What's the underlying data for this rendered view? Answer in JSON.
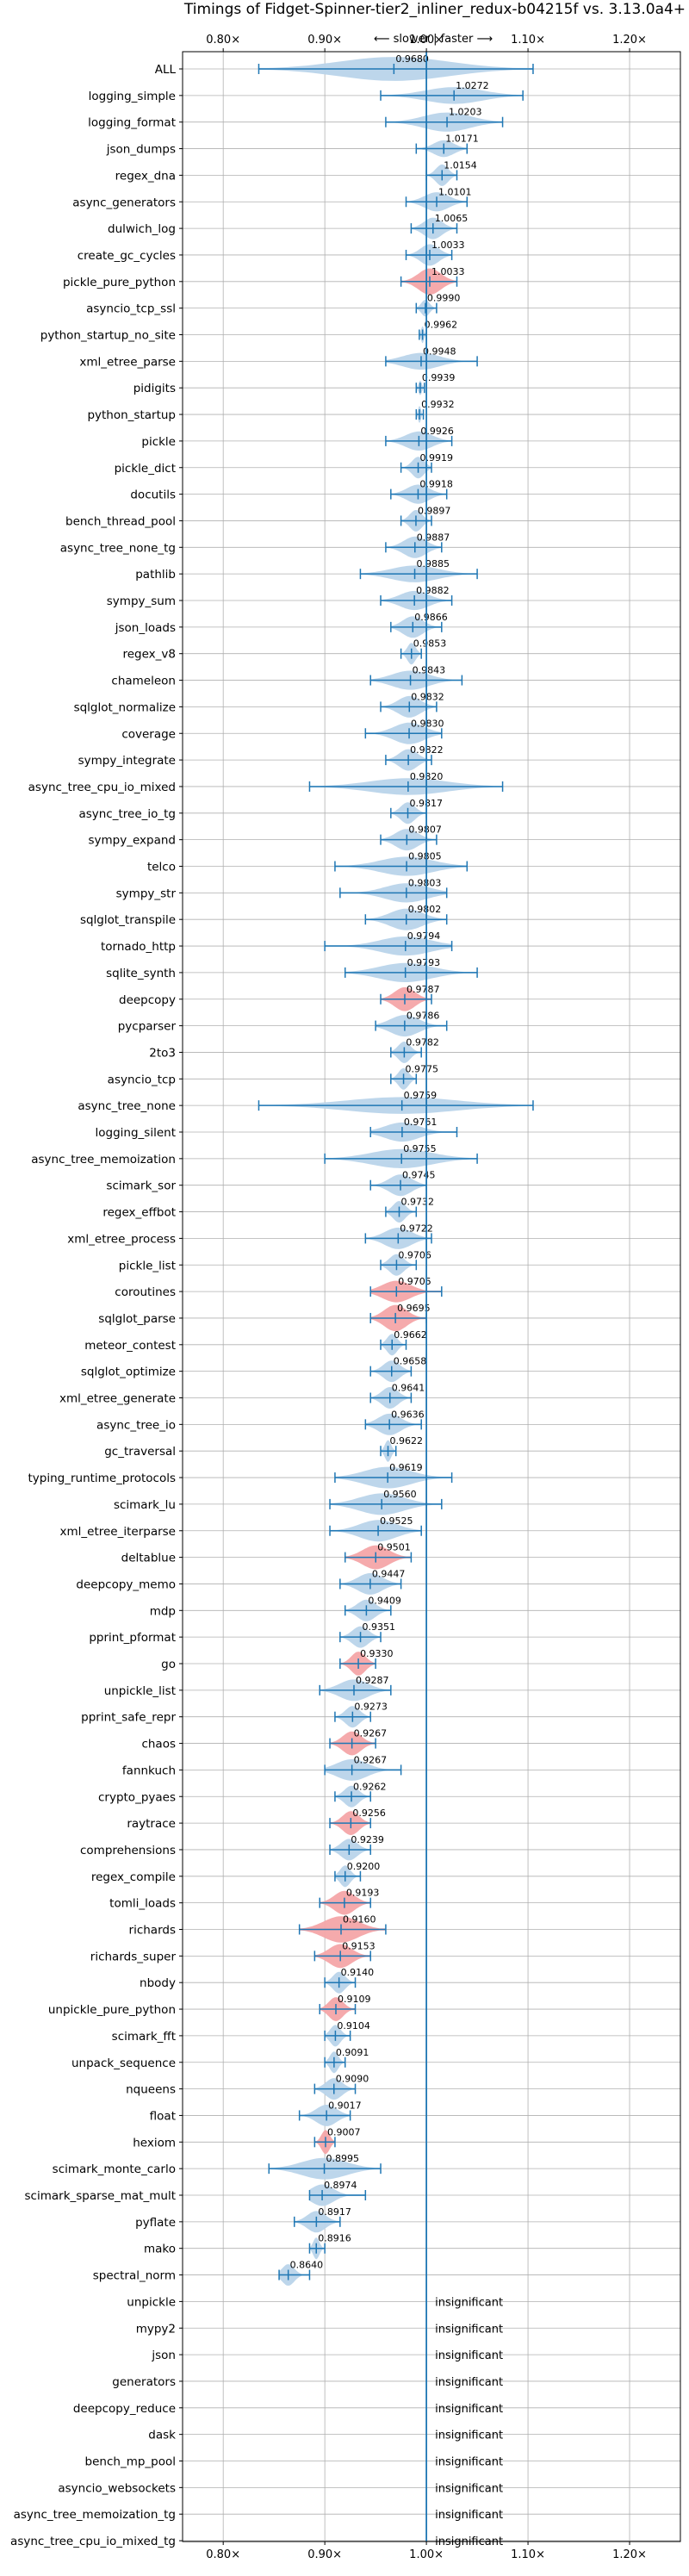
{
  "chart_data": {
    "type": "violin",
    "title": "Timings of Fidget-Spinner-tier2_inliner_redux-b04215f vs. 3.13.0a4+",
    "direction_label": "⟵ slower | faster ⟶",
    "xlim": [
      0.76,
      1.25
    ],
    "x_ticks": [
      {
        "value": 0.8,
        "label": "0.80×"
      },
      {
        "value": 0.9,
        "label": "0.90×"
      },
      {
        "value": 1.0,
        "label": "1.00×"
      },
      {
        "value": 1.1,
        "label": "1.10×"
      },
      {
        "value": 1.2,
        "label": "1.20×"
      }
    ],
    "reference_line": 1.0,
    "colors": {
      "normal": "#1f77b4",
      "normal_fill": "#b9d4ea",
      "highlight_fill": "#f4a5a8",
      "grid": "#b0b0b0"
    },
    "insignificant_text": "insignificant",
    "benchmarks": [
      {
        "name": "ALL",
        "mean": 0.968,
        "min": 0.835,
        "max": 1.105,
        "width": 0.5,
        "hl": false
      },
      {
        "name": "logging_simple",
        "mean": 1.0272,
        "min": 0.955,
        "max": 1.095,
        "width": 0.35,
        "hl": false
      },
      {
        "name": "logging_format",
        "mean": 1.0203,
        "min": 0.96,
        "max": 1.075,
        "width": 0.4,
        "hl": false
      },
      {
        "name": "json_dumps",
        "mean": 1.0171,
        "min": 0.99,
        "max": 1.04,
        "width": 0.35,
        "hl": false
      },
      {
        "name": "regex_dna",
        "mean": 1.0154,
        "min": 1.0,
        "max": 1.03,
        "width": 0.45,
        "hl": false
      },
      {
        "name": "async_generators",
        "mean": 1.0101,
        "min": 0.98,
        "max": 1.04,
        "width": 0.4,
        "hl": false
      },
      {
        "name": "dulwich_log",
        "mean": 1.0065,
        "min": 0.985,
        "max": 1.03,
        "width": 0.45,
        "hl": false
      },
      {
        "name": "create_gc_cycles",
        "mean": 1.0033,
        "min": 0.98,
        "max": 1.025,
        "width": 0.45,
        "hl": false
      },
      {
        "name": "pickle_pure_python",
        "mean": 1.0033,
        "min": 0.975,
        "max": 1.03,
        "width": 0.55,
        "hl": true
      },
      {
        "name": "asyncio_tcp_ssl",
        "mean": 0.999,
        "min": 0.99,
        "max": 1.01,
        "width": 0.35,
        "hl": false
      },
      {
        "name": "python_startup_no_site",
        "mean": 0.9962,
        "min": 0.993,
        "max": 1.0,
        "width": 0.35,
        "hl": false
      },
      {
        "name": "xml_etree_parse",
        "mean": 0.9948,
        "min": 0.96,
        "max": 1.05,
        "width": 0.35,
        "hl": false
      },
      {
        "name": "pidigits",
        "mean": 0.9939,
        "min": 0.99,
        "max": 0.998,
        "width": 0.3,
        "hl": false
      },
      {
        "name": "python_startup",
        "mean": 0.9932,
        "min": 0.99,
        "max": 0.997,
        "width": 0.35,
        "hl": false
      },
      {
        "name": "pickle",
        "mean": 0.9926,
        "min": 0.96,
        "max": 1.025,
        "width": 0.4,
        "hl": false
      },
      {
        "name": "pickle_dict",
        "mean": 0.9919,
        "min": 0.975,
        "max": 1.005,
        "width": 0.45,
        "hl": false
      },
      {
        "name": "docutils",
        "mean": 0.9918,
        "min": 0.965,
        "max": 1.02,
        "width": 0.4,
        "hl": false
      },
      {
        "name": "bench_thread_pool",
        "mean": 0.9897,
        "min": 0.975,
        "max": 1.005,
        "width": 0.45,
        "hl": false
      },
      {
        "name": "async_tree_none_tg",
        "mean": 0.9887,
        "min": 0.96,
        "max": 1.015,
        "width": 0.45,
        "hl": false
      },
      {
        "name": "pathlib",
        "mean": 0.9885,
        "min": 0.935,
        "max": 1.05,
        "width": 0.35,
        "hl": false
      },
      {
        "name": "sympy_sum",
        "mean": 0.9882,
        "min": 0.955,
        "max": 1.025,
        "width": 0.4,
        "hl": false
      },
      {
        "name": "json_loads",
        "mean": 0.9866,
        "min": 0.965,
        "max": 1.015,
        "width": 0.45,
        "hl": false
      },
      {
        "name": "regex_v8",
        "mean": 0.9853,
        "min": 0.975,
        "max": 0.995,
        "width": 0.45,
        "hl": false
      },
      {
        "name": "chameleon",
        "mean": 0.9843,
        "min": 0.945,
        "max": 1.035,
        "width": 0.4,
        "hl": false
      },
      {
        "name": "sqlglot_normalize",
        "mean": 0.9832,
        "min": 0.955,
        "max": 1.01,
        "width": 0.45,
        "hl": false
      },
      {
        "name": "coverage",
        "mean": 0.983,
        "min": 0.94,
        "max": 1.015,
        "width": 0.45,
        "hl": false
      },
      {
        "name": "sympy_integrate",
        "mean": 0.9822,
        "min": 0.96,
        "max": 1.005,
        "width": 0.45,
        "hl": false
      },
      {
        "name": "async_tree_cpu_io_mixed",
        "mean": 0.982,
        "min": 0.885,
        "max": 1.075,
        "width": 0.35,
        "hl": false
      },
      {
        "name": "async_tree_io_tg",
        "mean": 0.9817,
        "min": 0.965,
        "max": 1.0,
        "width": 0.45,
        "hl": false
      },
      {
        "name": "sympy_expand",
        "mean": 0.9807,
        "min": 0.955,
        "max": 1.01,
        "width": 0.45,
        "hl": false
      },
      {
        "name": "telco",
        "mean": 0.9805,
        "min": 0.91,
        "max": 1.04,
        "width": 0.4,
        "hl": false
      },
      {
        "name": "sympy_str",
        "mean": 0.9803,
        "min": 0.915,
        "max": 1.02,
        "width": 0.4,
        "hl": false
      },
      {
        "name": "sqlglot_transpile",
        "mean": 0.9802,
        "min": 0.94,
        "max": 1.02,
        "width": 0.45,
        "hl": false
      },
      {
        "name": "tornado_http",
        "mean": 0.9794,
        "min": 0.9,
        "max": 1.025,
        "width": 0.4,
        "hl": false
      },
      {
        "name": "sqlite_synth",
        "mean": 0.9793,
        "min": 0.92,
        "max": 1.05,
        "width": 0.4,
        "hl": false
      },
      {
        "name": "deepcopy",
        "mean": 0.9787,
        "min": 0.955,
        "max": 1.005,
        "width": 0.5,
        "hl": true
      },
      {
        "name": "pycparser",
        "mean": 0.9786,
        "min": 0.95,
        "max": 1.02,
        "width": 0.45,
        "hl": false
      },
      {
        "name": "2to3",
        "mean": 0.9782,
        "min": 0.965,
        "max": 0.995,
        "width": 0.45,
        "hl": false
      },
      {
        "name": "asyncio_tcp",
        "mean": 0.9775,
        "min": 0.965,
        "max": 0.99,
        "width": 0.45,
        "hl": false
      },
      {
        "name": "async_tree_none",
        "mean": 0.9759,
        "min": 0.835,
        "max": 1.105,
        "width": 0.35,
        "hl": false
      },
      {
        "name": "logging_silent",
        "mean": 0.9761,
        "min": 0.945,
        "max": 1.03,
        "width": 0.4,
        "hl": false
      },
      {
        "name": "async_tree_memoization",
        "mean": 0.9755,
        "min": 0.9,
        "max": 1.05,
        "width": 0.4,
        "hl": false
      },
      {
        "name": "scimark_sor",
        "mean": 0.9745,
        "min": 0.945,
        "max": 1.0,
        "width": 0.45,
        "hl": false
      },
      {
        "name": "regex_effbot",
        "mean": 0.9732,
        "min": 0.96,
        "max": 0.99,
        "width": 0.45,
        "hl": false
      },
      {
        "name": "xml_etree_process",
        "mean": 0.9722,
        "min": 0.94,
        "max": 1.005,
        "width": 0.45,
        "hl": false
      },
      {
        "name": "pickle_list",
        "mean": 0.9706,
        "min": 0.955,
        "max": 0.99,
        "width": 0.45,
        "hl": false
      },
      {
        "name": "coroutines",
        "mean": 0.9705,
        "min": 0.945,
        "max": 1.015,
        "width": 0.45,
        "hl": true
      },
      {
        "name": "sqlglot_parse",
        "mean": 0.9695,
        "min": 0.945,
        "max": 1.0,
        "width": 0.55,
        "hl": true
      },
      {
        "name": "meteor_contest",
        "mean": 0.9662,
        "min": 0.955,
        "max": 0.98,
        "width": 0.45,
        "hl": false
      },
      {
        "name": "sqlglot_optimize",
        "mean": 0.9658,
        "min": 0.945,
        "max": 0.985,
        "width": 0.45,
        "hl": false
      },
      {
        "name": "xml_etree_generate",
        "mean": 0.9641,
        "min": 0.945,
        "max": 0.985,
        "width": 0.45,
        "hl": false
      },
      {
        "name": "async_tree_io",
        "mean": 0.9636,
        "min": 0.94,
        "max": 0.995,
        "width": 0.45,
        "hl": false
      },
      {
        "name": "gc_traversal",
        "mean": 0.9622,
        "min": 0.955,
        "max": 0.97,
        "width": 0.45,
        "hl": false
      },
      {
        "name": "typing_runtime_protocols",
        "mean": 0.9619,
        "min": 0.91,
        "max": 1.025,
        "width": 0.45,
        "hl": false
      },
      {
        "name": "scimark_lu",
        "mean": 0.956,
        "min": 0.905,
        "max": 1.015,
        "width": 0.45,
        "hl": false
      },
      {
        "name": "xml_etree_iterparse",
        "mean": 0.9525,
        "min": 0.905,
        "max": 0.995,
        "width": 0.45,
        "hl": false
      },
      {
        "name": "deltablue",
        "mean": 0.9501,
        "min": 0.92,
        "max": 0.985,
        "width": 0.5,
        "hl": true
      },
      {
        "name": "deepcopy_memo",
        "mean": 0.9447,
        "min": 0.915,
        "max": 0.975,
        "width": 0.45,
        "hl": false
      },
      {
        "name": "mdp",
        "mean": 0.9409,
        "min": 0.92,
        "max": 0.965,
        "width": 0.45,
        "hl": false
      },
      {
        "name": "pprint_pformat",
        "mean": 0.9351,
        "min": 0.915,
        "max": 0.955,
        "width": 0.45,
        "hl": false
      },
      {
        "name": "go",
        "mean": 0.933,
        "min": 0.915,
        "max": 0.95,
        "width": 0.5,
        "hl": true
      },
      {
        "name": "unpickle_list",
        "mean": 0.9287,
        "min": 0.895,
        "max": 0.965,
        "width": 0.45,
        "hl": false
      },
      {
        "name": "pprint_safe_repr",
        "mean": 0.9273,
        "min": 0.91,
        "max": 0.945,
        "width": 0.45,
        "hl": false
      },
      {
        "name": "chaos",
        "mean": 0.9267,
        "min": 0.905,
        "max": 0.95,
        "width": 0.5,
        "hl": true
      },
      {
        "name": "fannkuch",
        "mean": 0.9267,
        "min": 0.9,
        "max": 0.975,
        "width": 0.45,
        "hl": false
      },
      {
        "name": "crypto_pyaes",
        "mean": 0.9262,
        "min": 0.91,
        "max": 0.945,
        "width": 0.45,
        "hl": false
      },
      {
        "name": "raytrace",
        "mean": 0.9256,
        "min": 0.905,
        "max": 0.945,
        "width": 0.5,
        "hl": true
      },
      {
        "name": "comprehensions",
        "mean": 0.9239,
        "min": 0.905,
        "max": 0.945,
        "width": 0.45,
        "hl": false
      },
      {
        "name": "regex_compile",
        "mean": 0.92,
        "min": 0.91,
        "max": 0.935,
        "width": 0.45,
        "hl": false
      },
      {
        "name": "tomli_loads",
        "mean": 0.9193,
        "min": 0.895,
        "max": 0.945,
        "width": 0.5,
        "hl": true
      },
      {
        "name": "richards",
        "mean": 0.916,
        "min": 0.875,
        "max": 0.96,
        "width": 0.55,
        "hl": true
      },
      {
        "name": "richards_super",
        "mean": 0.9153,
        "min": 0.89,
        "max": 0.945,
        "width": 0.5,
        "hl": true
      },
      {
        "name": "nbody",
        "mean": 0.914,
        "min": 0.9,
        "max": 0.93,
        "width": 0.45,
        "hl": false
      },
      {
        "name": "unpickle_pure_python",
        "mean": 0.9109,
        "min": 0.895,
        "max": 0.93,
        "width": 0.5,
        "hl": true
      },
      {
        "name": "scimark_fft",
        "mean": 0.9104,
        "min": 0.9,
        "max": 0.925,
        "width": 0.45,
        "hl": false
      },
      {
        "name": "unpack_sequence",
        "mean": 0.9091,
        "min": 0.9,
        "max": 0.92,
        "width": 0.45,
        "hl": false
      },
      {
        "name": "nqueens",
        "mean": 0.909,
        "min": 0.89,
        "max": 0.93,
        "width": 0.45,
        "hl": false
      },
      {
        "name": "float",
        "mean": 0.9017,
        "min": 0.875,
        "max": 0.925,
        "width": 0.45,
        "hl": false
      },
      {
        "name": "hexiom",
        "mean": 0.9007,
        "min": 0.89,
        "max": 0.91,
        "width": 0.5,
        "hl": true
      },
      {
        "name": "scimark_monte_carlo",
        "mean": 0.8995,
        "min": 0.845,
        "max": 0.955,
        "width": 0.45,
        "hl": false
      },
      {
        "name": "scimark_sparse_mat_mult",
        "mean": 0.8974,
        "min": 0.885,
        "max": 0.94,
        "width": 0.45,
        "hl": false
      },
      {
        "name": "pyflate",
        "mean": 0.8917,
        "min": 0.87,
        "max": 0.915,
        "width": 0.45,
        "hl": false
      },
      {
        "name": "mako",
        "mean": 0.8916,
        "min": 0.885,
        "max": 0.9,
        "width": 0.45,
        "hl": false
      },
      {
        "name": "spectral_norm",
        "mean": 0.864,
        "min": 0.855,
        "max": 0.885,
        "width": 0.45,
        "hl": false
      },
      {
        "name": "unpickle",
        "insignificant": true
      },
      {
        "name": "mypy2",
        "insignificant": true
      },
      {
        "name": "json",
        "insignificant": true
      },
      {
        "name": "generators",
        "insignificant": true
      },
      {
        "name": "deepcopy_reduce",
        "insignificant": true
      },
      {
        "name": "dask",
        "insignificant": true
      },
      {
        "name": "bench_mp_pool",
        "insignificant": true
      },
      {
        "name": "asyncio_websockets",
        "insignificant": true
      },
      {
        "name": "async_tree_memoization_tg",
        "insignificant": true
      },
      {
        "name": "async_tree_cpu_io_mixed_tg",
        "insignificant": true
      }
    ]
  }
}
